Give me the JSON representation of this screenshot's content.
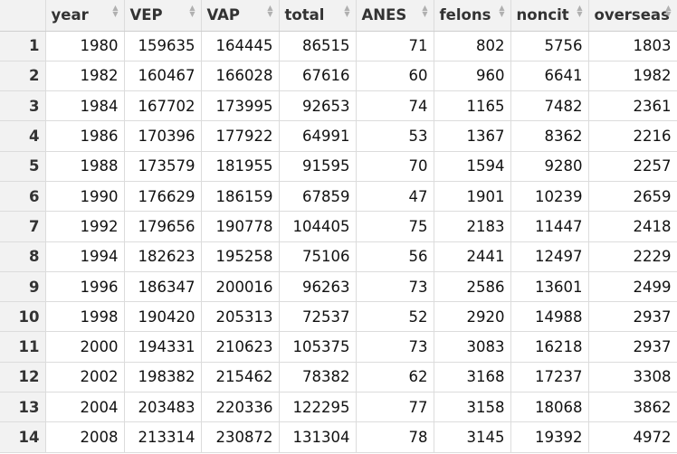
{
  "table": {
    "columns": [
      "year",
      "VEP",
      "VAP",
      "total",
      "ANES",
      "felons",
      "noncit",
      "overseas"
    ],
    "rows": [
      {
        "n": "1",
        "values": [
          "1980",
          "159635",
          "164445",
          "86515",
          "71",
          "802",
          "5756",
          "1803"
        ]
      },
      {
        "n": "2",
        "values": [
          "1982",
          "160467",
          "166028",
          "67616",
          "60",
          "960",
          "6641",
          "1982"
        ]
      },
      {
        "n": "3",
        "values": [
          "1984",
          "167702",
          "173995",
          "92653",
          "74",
          "1165",
          "7482",
          "2361"
        ]
      },
      {
        "n": "4",
        "values": [
          "1986",
          "170396",
          "177922",
          "64991",
          "53",
          "1367",
          "8362",
          "2216"
        ]
      },
      {
        "n": "5",
        "values": [
          "1988",
          "173579",
          "181955",
          "91595",
          "70",
          "1594",
          "9280",
          "2257"
        ]
      },
      {
        "n": "6",
        "values": [
          "1990",
          "176629",
          "186159",
          "67859",
          "47",
          "1901",
          "10239",
          "2659"
        ]
      },
      {
        "n": "7",
        "values": [
          "1992",
          "179656",
          "190778",
          "104405",
          "75",
          "2183",
          "11447",
          "2418"
        ]
      },
      {
        "n": "8",
        "values": [
          "1994",
          "182623",
          "195258",
          "75106",
          "56",
          "2441",
          "12497",
          "2229"
        ]
      },
      {
        "n": "9",
        "values": [
          "1996",
          "186347",
          "200016",
          "96263",
          "73",
          "2586",
          "13601",
          "2499"
        ]
      },
      {
        "n": "10",
        "values": [
          "1998",
          "190420",
          "205313",
          "72537",
          "52",
          "2920",
          "14988",
          "2937"
        ]
      },
      {
        "n": "11",
        "values": [
          "2000",
          "194331",
          "210623",
          "105375",
          "73",
          "3083",
          "16218",
          "2937"
        ]
      },
      {
        "n": "12",
        "values": [
          "2002",
          "198382",
          "215462",
          "78382",
          "62",
          "3168",
          "17237",
          "3308"
        ]
      },
      {
        "n": "13",
        "values": [
          "2004",
          "203483",
          "220336",
          "122295",
          "77",
          "3158",
          "18068",
          "3862"
        ]
      },
      {
        "n": "14",
        "values": [
          "2008",
          "213314",
          "230872",
          "131304",
          "78",
          "3145",
          "19392",
          "4972"
        ]
      }
    ]
  },
  "icons": {
    "sort": "sort-arrows-icon"
  }
}
